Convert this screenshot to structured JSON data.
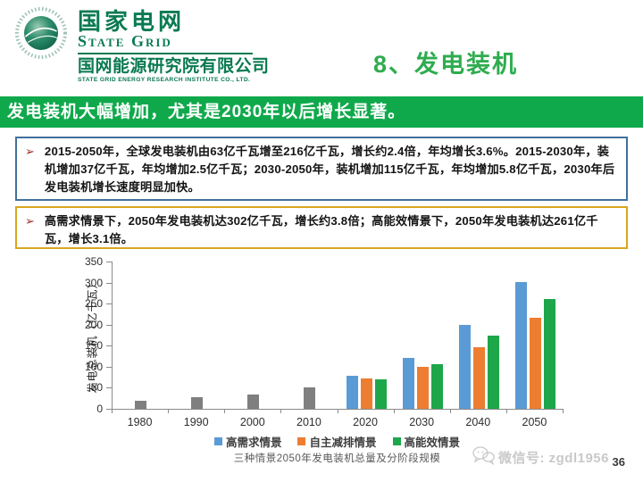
{
  "header": {
    "logo": {
      "brand_cn": "国家电网",
      "brand_en": "State Grid",
      "org_cn": "国网能源研究院有限公司",
      "org_en": "STATE GRID ENERGY RESEARCH INSTITUTE CO., LTD."
    },
    "section_title": "8、发电装机"
  },
  "banner": {
    "text": "发电装机大幅增加，尤其是2030年以后增长显著。",
    "bg_color": "#0fa94b"
  },
  "callouts": [
    {
      "bullet": "➢",
      "border_color": "#41719c",
      "text": "2015-2050年，全球发电装机由63亿千瓦增至216亿千瓦，增长约2.4倍，年均增长3.6%。2015-2030年，装机增加37亿千瓦，年均增加2.5亿千瓦；2030-2050年，装机增加115亿千瓦，年均增加5.8亿千瓦，2030年后发电装机增长速度明显加快。"
    },
    {
      "bullet": "➢",
      "border_color": "#d9a61f",
      "text": "高需求情景下，2050年发电装机达302亿千瓦，增长约3.8倍；高能效情景下，2050年发电装机达261亿千瓦，增长3.1倍。"
    }
  ],
  "chart_data": {
    "type": "bar",
    "title": "三种情景2050年发电装机总量及分阶段规模",
    "xlabel": "",
    "ylabel": "发电总装机（亿千瓦）",
    "ylim": [
      0,
      350
    ],
    "ytick_step": 50,
    "grid": false,
    "legend_position": "bottom",
    "categories": [
      "1980",
      "1990",
      "2000",
      "2010",
      "2020",
      "2030",
      "2040",
      "2050"
    ],
    "series": [
      {
        "name": "",
        "color": "#7f7f7f",
        "in_legend": false,
        "values": [
          20,
          27,
          34,
          50,
          null,
          null,
          null,
          null
        ]
      },
      {
        "name": "高需求情景",
        "color": "#5b9bd5",
        "in_legend": true,
        "values": [
          null,
          null,
          null,
          null,
          78,
          120,
          199,
          302
        ]
      },
      {
        "name": "自主减排情景",
        "color": "#ed7d31",
        "in_legend": true,
        "values": [
          null,
          null,
          null,
          null,
          73,
          100,
          146,
          216
        ]
      },
      {
        "name": "高能效情景",
        "color": "#1ea64a",
        "in_legend": true,
        "values": [
          null,
          null,
          null,
          null,
          69,
          106,
          173,
          261
        ]
      }
    ]
  },
  "footer": {
    "wechat_label": "微信号: zgdl1956",
    "page_number": "36"
  }
}
